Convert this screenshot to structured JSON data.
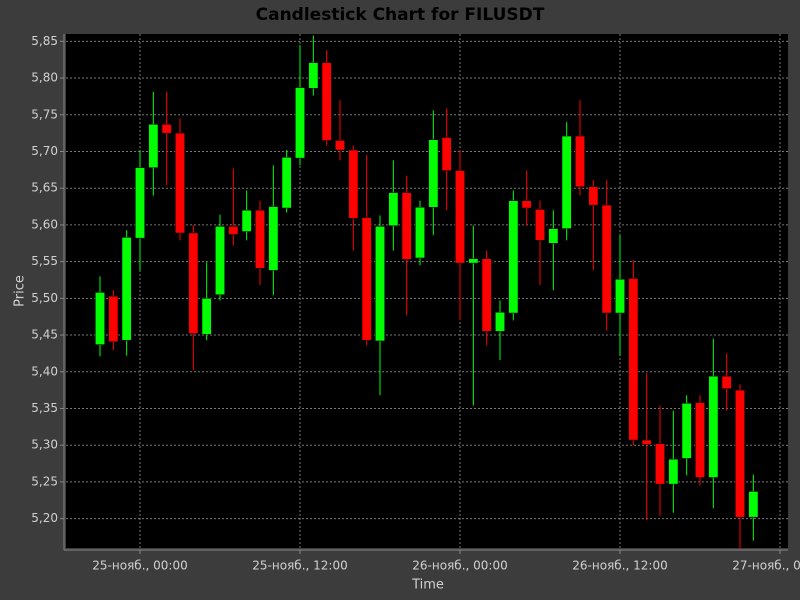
{
  "chart_data": {
    "type": "candlestick",
    "title": "Candlestick Chart for FILUSDT",
    "xlabel": "Time",
    "ylabel": "Price",
    "x": [
      -3,
      -2,
      -1,
      0,
      1,
      2,
      3,
      4,
      5,
      6,
      7,
      8,
      9,
      10,
      11,
      12,
      13,
      14,
      15,
      16,
      17,
      18,
      19,
      20,
      21,
      22,
      23,
      24,
      25,
      26,
      27,
      28,
      29,
      30,
      31,
      32,
      33,
      34,
      35,
      36,
      37,
      38,
      39,
      40,
      41,
      42,
      43,
      44,
      45,
      46
    ],
    "open": [
      5.437,
      5.503,
      5.443,
      5.582,
      5.678,
      5.737,
      5.725,
      5.589,
      5.451,
      5.505,
      5.598,
      5.591,
      5.62,
      5.538,
      5.623,
      5.691,
      5.786,
      5.821,
      5.715,
      5.702,
      5.61,
      5.442,
      5.599,
      5.644,
      5.555,
      5.624,
      5.719,
      5.674,
      5.548,
      5.554,
      5.455,
      5.48,
      5.633,
      5.621,
      5.575,
      5.595,
      5.721,
      5.652,
      5.627,
      5.48,
      5.527,
      5.307,
      5.302,
      5.247,
      5.282,
      5.358,
      5.256,
      5.394,
      5.375,
      5.202
    ],
    "high": [
      5.53,
      5.511,
      5.593,
      5.702,
      5.781,
      5.781,
      5.745,
      5.6,
      5.549,
      5.614,
      5.677,
      5.647,
      5.633,
      5.681,
      5.702,
      5.845,
      5.858,
      5.838,
      5.77,
      5.708,
      5.695,
      5.613,
      5.688,
      5.667,
      5.633,
      5.756,
      5.759,
      5.702,
      5.599,
      5.565,
      5.497,
      5.647,
      5.674,
      5.633,
      5.62,
      5.74,
      5.77,
      5.661,
      5.661,
      5.586,
      5.552,
      5.398,
      5.354,
      5.347,
      5.368,
      5.368,
      5.445,
      5.425,
      5.383,
      5.26
    ],
    "low": [
      5.421,
      5.429,
      5.422,
      5.538,
      5.64,
      5.654,
      5.579,
      5.402,
      5.443,
      5.497,
      5.572,
      5.579,
      5.518,
      5.504,
      5.617,
      5.681,
      5.776,
      5.708,
      5.688,
      5.565,
      5.436,
      5.368,
      5.565,
      5.477,
      5.545,
      5.586,
      5.62,
      5.47,
      5.354,
      5.436,
      5.416,
      5.47,
      5.599,
      5.518,
      5.511,
      5.579,
      5.64,
      5.538,
      5.456,
      5.422,
      5.3,
      5.198,
      5.204,
      5.208,
      5.259,
      5.245,
      5.214,
      5.347,
      5.159,
      5.17
    ],
    "close": [
      5.508,
      5.441,
      5.583,
      5.678,
      5.737,
      5.725,
      5.589,
      5.452,
      5.5,
      5.598,
      5.587,
      5.62,
      5.541,
      5.625,
      5.692,
      5.787,
      5.821,
      5.715,
      5.702,
      5.609,
      5.443,
      5.598,
      5.644,
      5.553,
      5.624,
      5.716,
      5.674,
      5.548,
      5.554,
      5.455,
      5.481,
      5.633,
      5.623,
      5.579,
      5.595,
      5.721,
      5.652,
      5.627,
      5.48,
      5.526,
      5.307,
      5.301,
      5.247,
      5.281,
      5.357,
      5.256,
      5.394,
      5.377,
      5.202,
      5.237
    ],
    "up_color": "#00ff00",
    "down_color": "#ff0000",
    "xlim": [
      -5.55,
      48.6
    ],
    "ylim": [
      5.16,
      5.86
    ],
    "xticks": [
      {
        "value": 0,
        "label": "25-нояб., 00:00"
      },
      {
        "value": 12,
        "label": "25-нояб., 12:00"
      },
      {
        "value": 24,
        "label": "26-нояб., 00:00"
      },
      {
        "value": 36,
        "label": "26-нояб., 12:00"
      },
      {
        "value": 48,
        "label": "27-нояб., 00:00"
      }
    ],
    "yticks": [
      {
        "value": 5.2,
        "label": "5,20"
      },
      {
        "value": 5.25,
        "label": "5,25"
      },
      {
        "value": 5.3,
        "label": "5,30"
      },
      {
        "value": 5.35,
        "label": "5,35"
      },
      {
        "value": 5.4,
        "label": "5,40"
      },
      {
        "value": 5.45,
        "label": "5,45"
      },
      {
        "value": 5.5,
        "label": "5,50"
      },
      {
        "value": 5.55,
        "label": "5,55"
      },
      {
        "value": 5.6,
        "label": "5,60"
      },
      {
        "value": 5.65,
        "label": "5,65"
      },
      {
        "value": 5.7,
        "label": "5,70"
      },
      {
        "value": 5.75,
        "label": "5,75"
      },
      {
        "value": 5.8,
        "label": "5,80"
      },
      {
        "value": 5.85,
        "label": "5,85"
      }
    ],
    "grid": true
  }
}
